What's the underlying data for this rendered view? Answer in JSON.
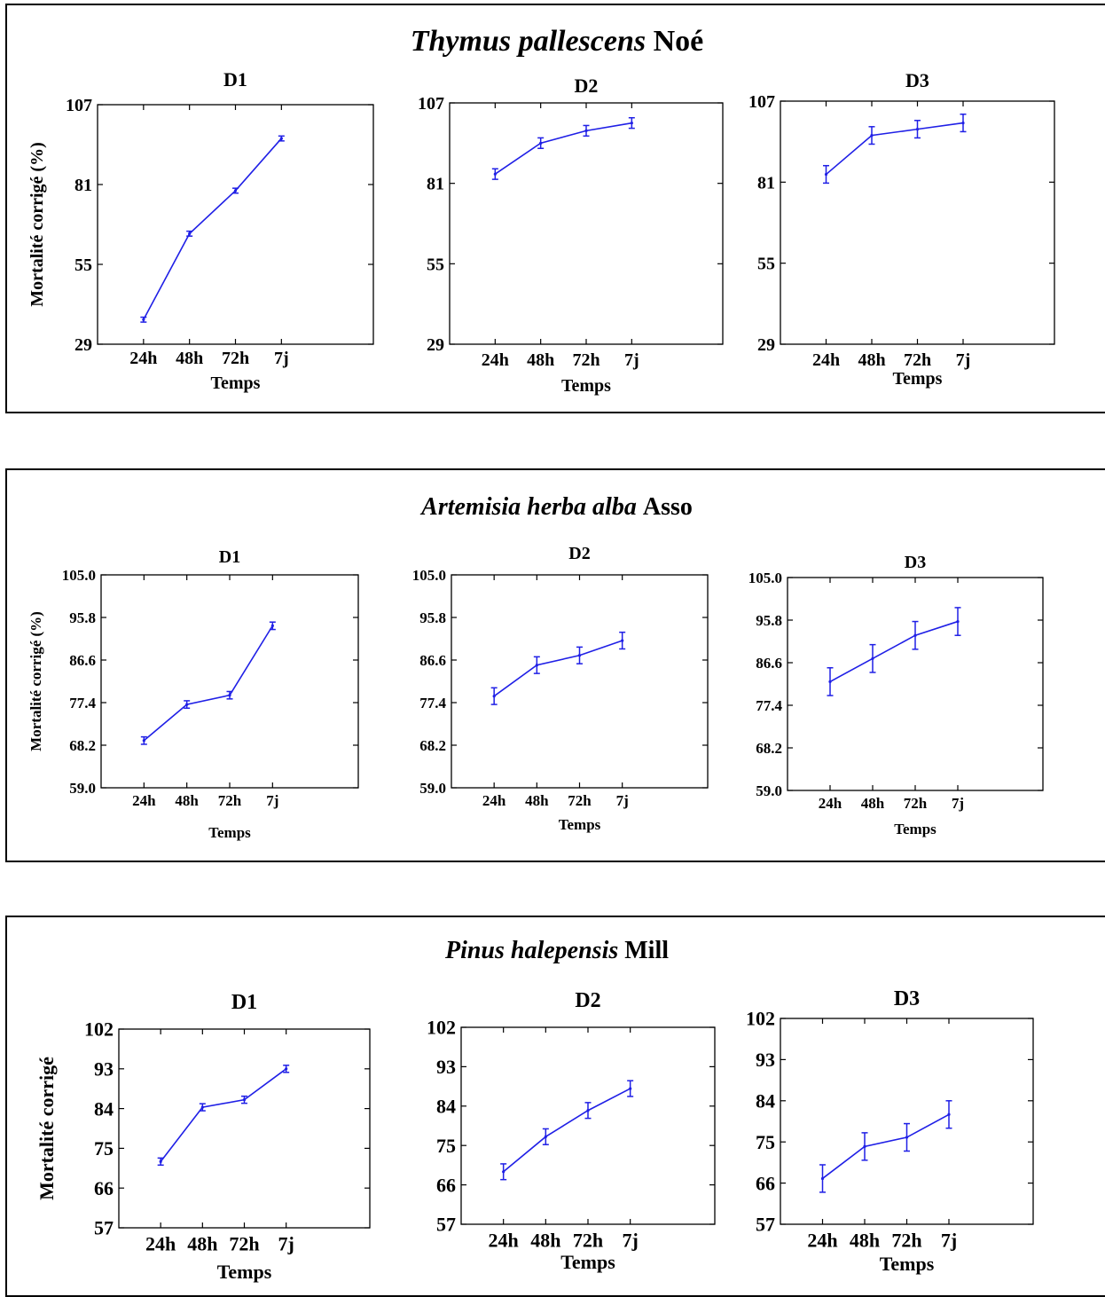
{
  "panels": [
    {
      "species": "Thymus pallescens",
      "author": "Noé",
      "charts": [
        {
          "type": "line",
          "title": "D1",
          "xlabel": "Temps",
          "ylabel": "Mortalité corrigé (%)",
          "categories": [
            "24h",
            "48h",
            "72h",
            "7j"
          ],
          "yticks": [
            "29",
            "55",
            "81",
            "107"
          ],
          "ylim": [
            29,
            107
          ],
          "series": [
            {
              "values": [
                37,
                65,
                79,
                96
              ],
              "errors": [
                0.8,
                0.8,
                0.8,
                0.8
              ]
            }
          ],
          "line_color": "#1f1fe6"
        },
        {
          "type": "line",
          "title": "D2",
          "xlabel": "Temps",
          "ylabel": "",
          "categories": [
            "24h",
            "48h",
            "72h",
            "7j"
          ],
          "yticks": [
            "29",
            "55",
            "81",
            "107"
          ],
          "ylim": [
            29,
            107
          ],
          "series": [
            {
              "values": [
                84,
                94,
                98,
                100.5
              ],
              "errors": [
                1.7,
                1.7,
                1.7,
                1.7
              ]
            }
          ],
          "line_color": "#1f1fe6"
        },
        {
          "type": "line",
          "title": "D3",
          "xlabel": "Temps",
          "ylabel": "",
          "categories": [
            "24h",
            "48h",
            "72h",
            "7j"
          ],
          "yticks": [
            "29",
            "55",
            "81",
            "107"
          ],
          "ylim": [
            29,
            107
          ],
          "series": [
            {
              "values": [
                83.5,
                96,
                98,
                100
              ],
              "errors": [
                2.8,
                2.8,
                2.8,
                2.8
              ]
            }
          ],
          "line_color": "#1f1fe6"
        }
      ]
    },
    {
      "species": "Artemisia herba alba",
      "author": "Asso",
      "charts": [
        {
          "type": "line",
          "title": "D1",
          "xlabel": "Temps",
          "ylabel": "Mortalité corrigé  (%)",
          "categories": [
            "24h",
            "48h",
            "72h",
            "7j"
          ],
          "yticks": [
            "59.0",
            "68.2",
            "77.4",
            "86.6",
            "95.8",
            "105.0"
          ],
          "ylim": [
            59,
            105
          ],
          "series": [
            {
              "values": [
                69.2,
                77,
                79,
                94
              ],
              "errors": [
                0.8,
                0.8,
                0.8,
                0.8
              ]
            }
          ],
          "line_color": "#1f1fe6"
        },
        {
          "type": "line",
          "title": "D2",
          "xlabel": "Temps",
          "ylabel": "",
          "categories": [
            "24h",
            "48h",
            "72h",
            "7j"
          ],
          "yticks": [
            "59.0",
            "68.2",
            "77.4",
            "86.6",
            "95.8",
            "105.0"
          ],
          "ylim": [
            59,
            105
          ],
          "series": [
            {
              "values": [
                78.8,
                85.5,
                87.6,
                90.8
              ],
              "errors": [
                1.8,
                1.8,
                1.8,
                1.8
              ]
            }
          ],
          "line_color": "#1f1fe6"
        },
        {
          "type": "line",
          "title": "D3",
          "xlabel": "Temps",
          "ylabel": "",
          "categories": [
            "24h",
            "48h",
            "72h",
            "7j"
          ],
          "yticks": [
            "59.0",
            "68.2",
            "77.4",
            "86.6",
            "95.8",
            "105.0"
          ],
          "ylim": [
            59,
            105
          ],
          "series": [
            {
              "values": [
                82.5,
                87.5,
                92.5,
                95.5
              ],
              "errors": [
                3,
                3,
                3,
                3
              ]
            }
          ],
          "line_color": "#1f1fe6"
        }
      ]
    },
    {
      "species": "Pinus halepensis",
      "author": "Mill",
      "charts": [
        {
          "type": "line",
          "title": "D1",
          "xlabel": "Temps",
          "ylabel": "Mortalité corrigé",
          "categories": [
            "24h",
            "48h",
            "72h",
            "7j"
          ],
          "yticks": [
            "57",
            "66",
            "75",
            "84",
            "93",
            "102"
          ],
          "ylim": [
            57,
            102
          ],
          "series": [
            {
              "values": [
                72,
                84.3,
                86,
                93
              ],
              "errors": [
                0.8,
                0.8,
                0.8,
                0.8
              ]
            }
          ],
          "line_color": "#1f1fe6"
        },
        {
          "type": "line",
          "title": "D2",
          "xlabel": "Temps",
          "ylabel": "",
          "categories": [
            "24h",
            "48h",
            "72h",
            "7j"
          ],
          "yticks": [
            "57",
            "66",
            "75",
            "84",
            "93",
            "102"
          ],
          "ylim": [
            57,
            102
          ],
          "series": [
            {
              "values": [
                69,
                77,
                83,
                88
              ],
              "errors": [
                1.8,
                1.8,
                1.8,
                1.8
              ]
            }
          ],
          "line_color": "#1f1fe6"
        },
        {
          "type": "line",
          "title": "D3",
          "xlabel": "Temps",
          "ylabel": "",
          "categories": [
            "24h",
            "48h",
            "72h",
            "7j"
          ],
          "yticks": [
            "57",
            "66",
            "75",
            "84",
            "93",
            "102"
          ],
          "ylim": [
            57,
            102
          ],
          "series": [
            {
              "values": [
                67,
                74,
                76,
                81
              ],
              "errors": [
                3,
                3,
                3,
                3
              ]
            }
          ],
          "line_color": "#1f1fe6"
        }
      ]
    }
  ]
}
